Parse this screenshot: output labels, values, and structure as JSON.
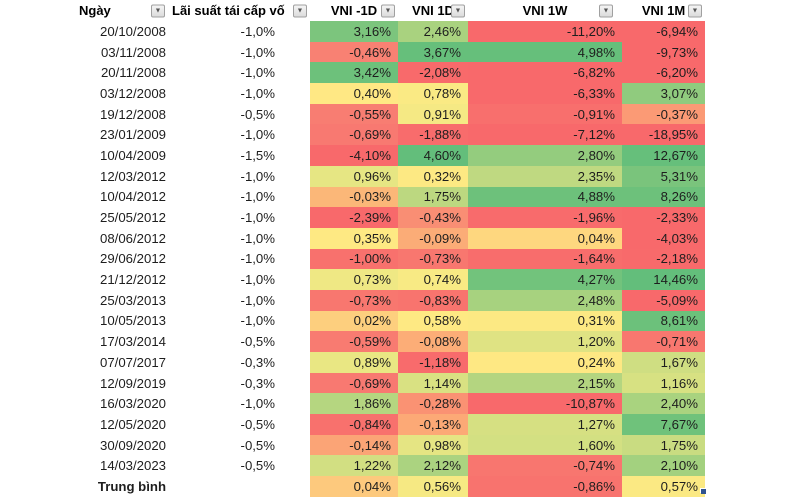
{
  "table": {
    "columns": [
      {
        "name": "date",
        "label": "Ngày"
      },
      {
        "name": "rate",
        "label": "Lãi suất tái cấp vố"
      },
      {
        "name": "vni-m1d",
        "label": "VNI -1D"
      },
      {
        "name": "vni-1d",
        "label": "VNI 1D"
      },
      {
        "name": "vni-1w",
        "label": "VNI 1W"
      },
      {
        "name": "vni-1m",
        "label": "VNI 1M"
      }
    ],
    "rows": [
      {
        "date": "20/10/2008",
        "rate": "-1,0%",
        "cells": [
          {
            "v": "3,16%",
            "bg": "#7CC57D"
          },
          {
            "v": "2,46%",
            "bg": "#A9D27F"
          },
          {
            "v": "-11,20%",
            "bg": "#F8696B"
          },
          {
            "v": "-6,94%",
            "bg": "#F8696B"
          }
        ]
      },
      {
        "date": "03/11/2008",
        "rate": "-1,0%",
        "cells": [
          {
            "v": "-0,46%",
            "bg": "#F88173"
          },
          {
            "v": "3,67%",
            "bg": "#66BF7B"
          },
          {
            "v": "4,98%",
            "bg": "#66BF7B"
          },
          {
            "v": "-9,73%",
            "bg": "#F8696B"
          }
        ]
      },
      {
        "date": "20/11/2008",
        "rate": "-1,0%",
        "cells": [
          {
            "v": "3,42%",
            "bg": "#6DC17B"
          },
          {
            "v": "-2,08%",
            "bg": "#F86A6B"
          },
          {
            "v": "-6,82%",
            "bg": "#F8696B"
          },
          {
            "v": "-6,20%",
            "bg": "#F8696B"
          }
        ]
      },
      {
        "date": "03/12/2008",
        "rate": "-1,0%",
        "cells": [
          {
            "v": "0,40%",
            "bg": "#FFE884"
          },
          {
            "v": "0,78%",
            "bg": "#FAEA84"
          },
          {
            "v": "-6,33%",
            "bg": "#F8696B"
          },
          {
            "v": "3,07%",
            "bg": "#90CB7E"
          }
        ]
      },
      {
        "date": "19/12/2008",
        "rate": "-0,5%",
        "cells": [
          {
            "v": "-0,55%",
            "bg": "#F87D72"
          },
          {
            "v": "0,91%",
            "bg": "#F5E984"
          },
          {
            "v": "-0,91%",
            "bg": "#F86F6D"
          },
          {
            "v": "-0,37%",
            "bg": "#FB9A75"
          }
        ]
      },
      {
        "date": "23/01/2009",
        "rate": "-1,0%",
        "cells": [
          {
            "v": "-0,69%",
            "bg": "#F87971"
          },
          {
            "v": "-1,88%",
            "bg": "#F86C6C"
          },
          {
            "v": "-7,12%",
            "bg": "#F8696B"
          },
          {
            "v": "-18,95%",
            "bg": "#F8696B"
          }
        ]
      },
      {
        "date": "10/04/2009",
        "rate": "-1,5%",
        "cells": [
          {
            "v": "-4,10%",
            "bg": "#F8696B"
          },
          {
            "v": "4,60%",
            "bg": "#63BE7B"
          },
          {
            "v": "2,80%",
            "bg": "#94CC7E"
          },
          {
            "v": "12,67%",
            "bg": "#66BF7B"
          }
        ]
      },
      {
        "date": "12/03/2012",
        "rate": "-1,0%",
        "cells": [
          {
            "v": "0,96%",
            "bg": "#E6E683"
          },
          {
            "v": "0,32%",
            "bg": "#FDE983"
          },
          {
            "v": "2,35%",
            "bg": "#BFD981"
          },
          {
            "v": "5,31%",
            "bg": "#7AC47C"
          }
        ]
      },
      {
        "date": "10/04/2012",
        "rate": "-1,0%",
        "cells": [
          {
            "v": "-0,03%",
            "bg": "#FBB778"
          },
          {
            "v": "1,75%",
            "bg": "#BCD880"
          },
          {
            "v": "4,88%",
            "bg": "#6DC17B"
          },
          {
            "v": "8,26%",
            "bg": "#6DC17B"
          }
        ]
      },
      {
        "date": "25/05/2012",
        "rate": "-1,0%",
        "cells": [
          {
            "v": "-2,39%",
            "bg": "#F8696B"
          },
          {
            "v": "-0,43%",
            "bg": "#F98E74"
          },
          {
            "v": "-1,96%",
            "bg": "#F86B6C"
          },
          {
            "v": "-2,33%",
            "bg": "#F8696B"
          }
        ]
      },
      {
        "date": "08/06/2012",
        "rate": "-1,0%",
        "cells": [
          {
            "v": "0,35%",
            "bg": "#FEE983"
          },
          {
            "v": "-0,09%",
            "bg": "#FBAC77"
          },
          {
            "v": "0,04%",
            "bg": "#FED77F"
          },
          {
            "v": "-4,03%",
            "bg": "#F8696B"
          }
        ]
      },
      {
        "date": "29/06/2012",
        "rate": "-1,0%",
        "cells": [
          {
            "v": "-1,00%",
            "bg": "#F8716D"
          },
          {
            "v": "-0,73%",
            "bg": "#F8776F"
          },
          {
            "v": "-1,64%",
            "bg": "#F86D6C"
          },
          {
            "v": "-2,18%",
            "bg": "#F86A6B"
          }
        ]
      },
      {
        "date": "21/12/2012",
        "rate": "-1,0%",
        "cells": [
          {
            "v": "0,73%",
            "bg": "#EFE884"
          },
          {
            "v": "0,74%",
            "bg": "#F8EA84"
          },
          {
            "v": "4,27%",
            "bg": "#72C37C"
          },
          {
            "v": "14,46%",
            "bg": "#63BE7B"
          }
        ]
      },
      {
        "date": "25/03/2013",
        "rate": "-1,0%",
        "cells": [
          {
            "v": "-0,73%",
            "bg": "#F8776F"
          },
          {
            "v": "-0,83%",
            "bg": "#F8746E"
          },
          {
            "v": "2,48%",
            "bg": "#A7D27F"
          },
          {
            "v": "-5,09%",
            "bg": "#F8696B"
          }
        ]
      },
      {
        "date": "10/05/2013",
        "rate": "-1,0%",
        "cells": [
          {
            "v": "0,02%",
            "bg": "#FDCF7E"
          },
          {
            "v": "0,58%",
            "bg": "#FEE983"
          },
          {
            "v": "0,31%",
            "bg": "#FCE983"
          },
          {
            "v": "8,61%",
            "bg": "#6CC17B"
          }
        ]
      },
      {
        "date": "17/03/2014",
        "rate": "-0,5%",
        "cells": [
          {
            "v": "-0,59%",
            "bg": "#F87B71"
          },
          {
            "v": "-0,08%",
            "bg": "#FCAD77"
          },
          {
            "v": "1,20%",
            "bg": "#DFE383"
          },
          {
            "v": "-0,71%",
            "bg": "#F8776F"
          }
        ]
      },
      {
        "date": "07/07/2017",
        "rate": "-0,3%",
        "cells": [
          {
            "v": "0,89%",
            "bg": "#E9E783"
          },
          {
            "v": "-1,18%",
            "bg": "#F86B6C"
          },
          {
            "v": "0,24%",
            "bg": "#FEE883"
          },
          {
            "v": "1,67%",
            "bg": "#CFDE82"
          }
        ]
      },
      {
        "date": "12/09/2019",
        "rate": "-0,3%",
        "cells": [
          {
            "v": "-0,69%",
            "bg": "#F87971"
          },
          {
            "v": "1,14%",
            "bg": "#D9E182"
          },
          {
            "v": "2,15%",
            "bg": "#B4D580"
          },
          {
            "v": "1,16%",
            "bg": "#D7E182"
          }
        ]
      },
      {
        "date": "16/03/2020",
        "rate": "-1,0%",
        "cells": [
          {
            "v": "1,86%",
            "bg": "#B5D680"
          },
          {
            "v": "-0,28%",
            "bg": "#FA9273"
          },
          {
            "v": "-10,87%",
            "bg": "#F8696B"
          },
          {
            "v": "2,40%",
            "bg": "#A9D37F"
          }
        ]
      },
      {
        "date": "12/05/2020",
        "rate": "-0,5%",
        "cells": [
          {
            "v": "-0,84%",
            "bg": "#F8716D"
          },
          {
            "v": "-0,13%",
            "bg": "#FCA976"
          },
          {
            "v": "1,27%",
            "bg": "#D6E082"
          },
          {
            "v": "7,67%",
            "bg": "#6FC27B"
          }
        ]
      },
      {
        "date": "30/09/2020",
        "rate": "-0,5%",
        "cells": [
          {
            "v": "-0,14%",
            "bg": "#FBA476"
          },
          {
            "v": "0,98%",
            "bg": "#E5E583"
          },
          {
            "v": "1,60%",
            "bg": "#D3E082"
          },
          {
            "v": "1,75%",
            "bg": "#C9DC81"
          }
        ]
      },
      {
        "date": "14/03/2023",
        "rate": "-0,5%",
        "cells": [
          {
            "v": "1,22%",
            "bg": "#D2DF82"
          },
          {
            "v": "2,12%",
            "bg": "#ABD380"
          },
          {
            "v": "-0,74%",
            "bg": "#F8766F"
          },
          {
            "v": "2,10%",
            "bg": "#A3D17F"
          }
        ]
      },
      {
        "date": "Trung bình",
        "rate": "",
        "bold": true,
        "cells": [
          {
            "v": "0,04%",
            "bg": "#FDC97D"
          },
          {
            "v": "0,56%",
            "bg": "#F6E983"
          },
          {
            "v": "-0,86%",
            "bg": "#F8736E"
          },
          {
            "v": "0,57%",
            "bg": "#FBE983"
          }
        ]
      }
    ]
  },
  "icons": {
    "filter_arrow": "▼"
  },
  "colors": {
    "scale_min_red": "#F8696B",
    "scale_mid_yellow": "#FFEB84",
    "scale_max_green": "#63BE7B",
    "fill_handle_blue": "#31538F",
    "text": "#1e1e1e"
  }
}
